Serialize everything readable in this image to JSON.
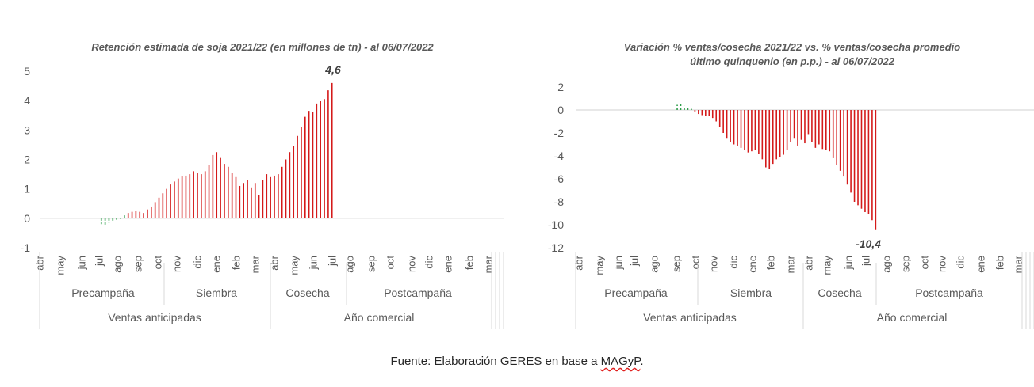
{
  "colors": {
    "positive": "#2e9e4a",
    "negative": "#d41a1a",
    "axis": "#d9d9d9",
    "text": "#595959"
  },
  "chart_data": [
    {
      "type": "bar",
      "title": "Retención estimada de soja 2021/22 (en millones de tn) - al 06/07/2022",
      "xlabel": "",
      "ylabel": "",
      "ylim": [
        -1,
        5
      ],
      "yticks": [
        "-1",
        "0",
        "1",
        "2",
        "3",
        "4",
        "5"
      ],
      "month_labels": [
        "abr",
        "may",
        "jun",
        "jul",
        "ago",
        "sep",
        "oct",
        "nov",
        "dic",
        "ene",
        "feb",
        "mar",
        "abr",
        "may",
        "jun",
        "jul",
        "ago",
        "sep",
        "oct",
        "nov",
        "dic",
        "ene",
        "feb",
        "mar"
      ],
      "stage_labels": [
        "Precampaña",
        "Siembra",
        "Cosecha",
        "Postcampaña"
      ],
      "period_labels": [
        "Ventas anticipadas",
        "Año comercial"
      ],
      "annotation": "4,6",
      "grid": false,
      "legend": "none",
      "values": [
        0,
        0,
        0,
        0,
        0,
        0,
        0,
        0,
        0,
        0,
        0,
        0,
        0,
        0,
        0,
        -0.2,
        -0.22,
        -0.15,
        -0.1,
        -0.05,
        -0.02,
        0.1,
        0.18,
        0.22,
        0.25,
        0.22,
        0.18,
        0.3,
        0.4,
        0.55,
        0.7,
        0.85,
        1.0,
        1.15,
        1.25,
        1.35,
        1.42,
        1.45,
        1.5,
        1.6,
        1.55,
        1.5,
        1.6,
        1.8,
        2.15,
        2.25,
        2.05,
        1.85,
        1.75,
        1.55,
        1.4,
        1.1,
        1.2,
        1.3,
        1.05,
        1.2,
        0.8,
        1.3,
        1.5,
        1.4,
        1.45,
        1.5,
        1.75,
        2.0,
        2.25,
        2.45,
        2.8,
        3.1,
        3.45,
        3.65,
        3.6,
        3.9,
        4.0,
        4.05,
        4.35,
        4.6
      ]
    },
    {
      "type": "bar",
      "title": "Variación % ventas/cosecha 2021/22 vs. % ventas/cosecha promedio último quinquenio (en p.p.) - al 06/07/2022",
      "xlabel": "",
      "ylabel": "",
      "ylim": [
        -12,
        2
      ],
      "yticks": [
        "-12",
        "-10",
        "-8",
        "-6",
        "-4",
        "-2",
        "0",
        "2"
      ],
      "month_labels": [
        "abr",
        "may",
        "jun",
        "jul",
        "ago",
        "sep",
        "oct",
        "nov",
        "dic",
        "ene",
        "feb",
        "mar",
        "abr",
        "may",
        "jun",
        "jul",
        "ago",
        "sep",
        "oct",
        "nov",
        "dic",
        "ene",
        "feb",
        "mar"
      ],
      "stage_labels": [
        "Precampaña",
        "Siembra",
        "Cosecha",
        "Postcampaña"
      ],
      "period_labels": [
        "Ventas anticipadas",
        "Año comercial"
      ],
      "annotation": "-10,4",
      "grid": false,
      "legend": "none",
      "values": [
        0,
        0,
        0,
        0,
        0,
        0,
        0,
        0,
        0,
        0,
        0,
        0,
        0,
        0,
        0,
        0.45,
        0.5,
        0.35,
        0.25,
        0.1,
        -0.2,
        -0.35,
        -0.45,
        -0.55,
        -0.5,
        -0.7,
        -1.0,
        -1.5,
        -2.0,
        -2.5,
        -2.8,
        -3.0,
        -3.1,
        -3.3,
        -3.5,
        -3.7,
        -3.6,
        -3.5,
        -3.8,
        -4.3,
        -5.0,
        -5.1,
        -4.7,
        -4.3,
        -4.1,
        -3.9,
        -3.5,
        -2.8,
        -2.5,
        -3.1,
        -2.6,
        -2.9,
        -2.1,
        -2.8,
        -3.3,
        -3.0,
        -3.4,
        -3.5,
        -3.6,
        -4.2,
        -4.8,
        -5.3,
        -5.8,
        -6.5,
        -7.2,
        -8.0,
        -8.3,
        -8.6,
        -8.9,
        -9.1,
        -9.6,
        -10.4
      ]
    }
  ],
  "footer": {
    "prefix": "Fuente: Elaboración GERES en base a ",
    "source": "MAGyP",
    "suffix": "."
  }
}
